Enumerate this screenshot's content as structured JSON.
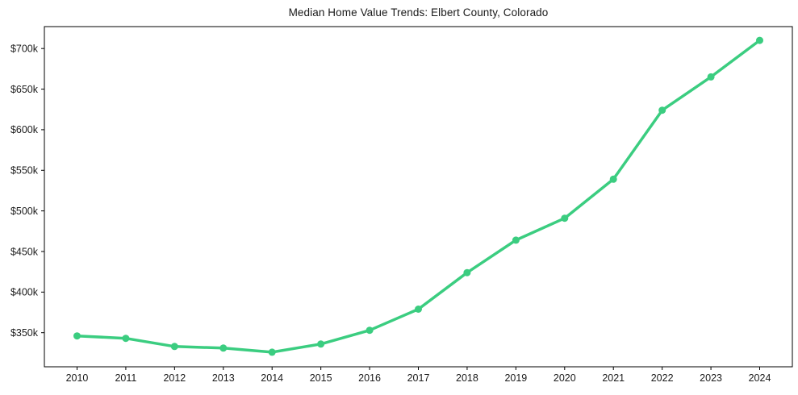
{
  "page": {
    "background": "#ffffff",
    "text_color": "#1a1a1a"
  },
  "chart_data": {
    "type": "line",
    "title": "Median Home Value Trends: Elbert County, Colorado",
    "xlabel": "",
    "ylabel": "",
    "grid": false,
    "legend": null,
    "categories": [
      "2010",
      "2011",
      "2012",
      "2013",
      "2014",
      "2015",
      "2016",
      "2017",
      "2018",
      "2019",
      "2020",
      "2021",
      "2022",
      "2023",
      "2024"
    ],
    "series": [
      {
        "name": "Median Home Value",
        "values": [
          346000,
          343000,
          333000,
          331000,
          326000,
          336000,
          353000,
          379000,
          424000,
          464000,
          491000,
          539000,
          624000,
          665000,
          710000
        ]
      }
    ],
    "ylim": [
      308000,
      727000
    ],
    "yticks": [
      {
        "value": 350000,
        "label": "$350k"
      },
      {
        "value": 400000,
        "label": "$400k"
      },
      {
        "value": 450000,
        "label": "$450k"
      },
      {
        "value": 500000,
        "label": "$500k"
      },
      {
        "value": 550000,
        "label": "$550k"
      },
      {
        "value": 600000,
        "label": "$600k"
      },
      {
        "value": 650000,
        "label": "$650k"
      },
      {
        "value": 700000,
        "label": "$700k"
      }
    ],
    "line_color": "#3bcd80",
    "marker_color": "#3bcd80",
    "marker_shape": "circle",
    "spine_color": "#000000"
  }
}
